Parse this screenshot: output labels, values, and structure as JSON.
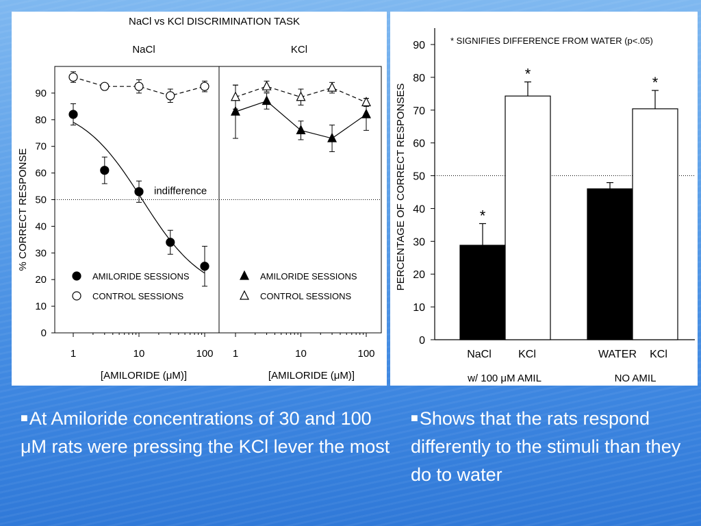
{
  "chart_data": [
    {
      "type": "line",
      "title": "NaCl vs KCl DISCRIMINATION TASK",
      "ylabel": "% CORRECT RESPONSE",
      "ylim": [
        0,
        100
      ],
      "yticks": [
        0,
        10,
        20,
        30,
        40,
        50,
        60,
        70,
        80,
        90
      ],
      "reference_line": {
        "y": 50,
        "label": "indifference"
      },
      "xscale": "log",
      "panels": [
        {
          "title": "NaCl",
          "xlabel": "[AMILORIDE (μM)]",
          "xticks": [
            1,
            10,
            100
          ],
          "series": [
            {
              "name": "AMILORIDE SESSIONS",
              "marker": "filled-circle",
              "x": [
                1,
                3,
                10,
                30,
                100
              ],
              "y": [
                82,
                61,
                53,
                34,
                25
              ],
              "err": [
                4,
                5,
                4,
                4.5,
                7.5
              ],
              "fit_curve": true
            },
            {
              "name": "CONTROL SESSIONS",
              "marker": "open-circle",
              "x": [
                1,
                3,
                10,
                30,
                100
              ],
              "y": [
                96,
                92.5,
                92.5,
                89,
                92.5
              ],
              "err": [
                2,
                1,
                2.5,
                2.5,
                2
              ]
            }
          ]
        },
        {
          "title": "KCl",
          "xlabel": "[AMILORIDE (μM)]",
          "xticks": [
            1,
            10,
            100
          ],
          "series": [
            {
              "name": "AMILORIDE SESSIONS",
              "marker": "filled-triangle",
              "x": [
                1,
                3,
                10,
                30,
                100
              ],
              "y": [
                83,
                87,
                76,
                73,
                82
              ],
              "err": [
                10,
                3,
                3.5,
                5,
                6
              ]
            },
            {
              "name": "CONTROL SESSIONS",
              "marker": "open-triangle",
              "x": [
                1,
                3,
                10,
                30,
                100
              ],
              "y": [
                88.5,
                92.5,
                88.5,
                92,
                86.5
              ],
              "err": [
                4.5,
                2,
                3,
                2,
                1.5
              ]
            }
          ]
        }
      ]
    },
    {
      "type": "bar",
      "ylabel": "PERCENTAGE OF CORRECT RESPONSES",
      "ylim": [
        0,
        95
      ],
      "yticks": [
        0,
        10,
        20,
        30,
        40,
        50,
        60,
        70,
        80,
        90
      ],
      "annotation": "* SIGNIFIES DIFFERENCE FROM WATER (p<.05)",
      "reference_line": {
        "y": 50
      },
      "groups": [
        "w/ 100 μM AMIL",
        "NO AMIL"
      ],
      "bars": [
        {
          "label": "NaCl",
          "group": 0,
          "value": 28.8,
          "err": 6.6,
          "fill": "#000000",
          "sig": true
        },
        {
          "label": "KCl",
          "group": 0,
          "value": 74.3,
          "err": 4.3,
          "fill": "#ffffff",
          "sig": true
        },
        {
          "label": "WATER",
          "group": 1,
          "value": 46,
          "err": 1.9,
          "fill": "#000000",
          "sig": false
        },
        {
          "label": "KCl",
          "group": 1,
          "value": 70.4,
          "err": 5.6,
          "fill": "#ffffff",
          "sig": true
        }
      ]
    }
  ],
  "bullets": {
    "left": "At Amiloride concentrations of 30 and 100 μM rats were pressing the KCl lever the most",
    "right": "Shows that the rats respond differently to the stimuli than they do to water"
  },
  "colors": {
    "text": "#ffffff",
    "background": "#5a9ee8"
  }
}
